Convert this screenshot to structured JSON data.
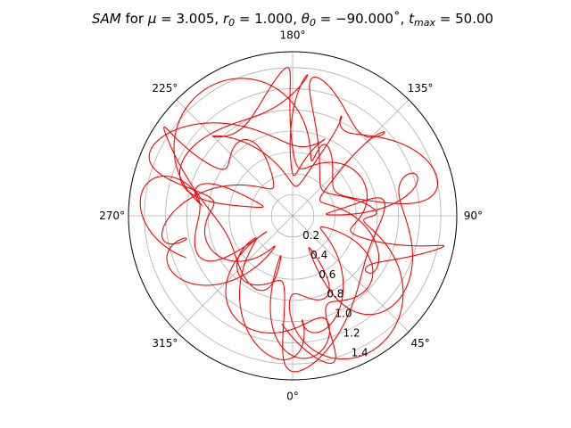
{
  "chart_data": {
    "type": "line",
    "projection": "polar",
    "title": {
      "prefix": "SAM",
      "mu": "3.005",
      "r0": "1.000",
      "theta0": "−90.000˚",
      "tmax": "50.00"
    },
    "theta_zero_location": "bottom",
    "theta_direction": "counterclockwise",
    "theta_ticks": [
      {
        "deg": 0,
        "label": "0°"
      },
      {
        "deg": 45,
        "label": "45°"
      },
      {
        "deg": 90,
        "label": "90°"
      },
      {
        "deg": 135,
        "label": "135°"
      },
      {
        "deg": 180,
        "label": "180°"
      },
      {
        "deg": 225,
        "label": "225°"
      },
      {
        "deg": 270,
        "label": "270°"
      },
      {
        "deg": 315,
        "label": "315°"
      }
    ],
    "r_ticks": [
      {
        "value": 0.2,
        "label": "0.2"
      },
      {
        "value": 0.4,
        "label": "0.4"
      },
      {
        "value": 0.6,
        "label": "0.6"
      },
      {
        "value": 0.8,
        "label": "0.8"
      },
      {
        "value": 1.0,
        "label": "1.0"
      },
      {
        "value": 1.2,
        "label": "1.2"
      },
      {
        "value": 1.4,
        "label": "1.4"
      }
    ],
    "r_tick_angle_deg": 22.5,
    "rlim": [
      0,
      1.55
    ],
    "grid": true,
    "series": [
      {
        "color": "#ff0000",
        "description_r_range": [
          0.28,
          1.48
        ]
      }
    ]
  }
}
